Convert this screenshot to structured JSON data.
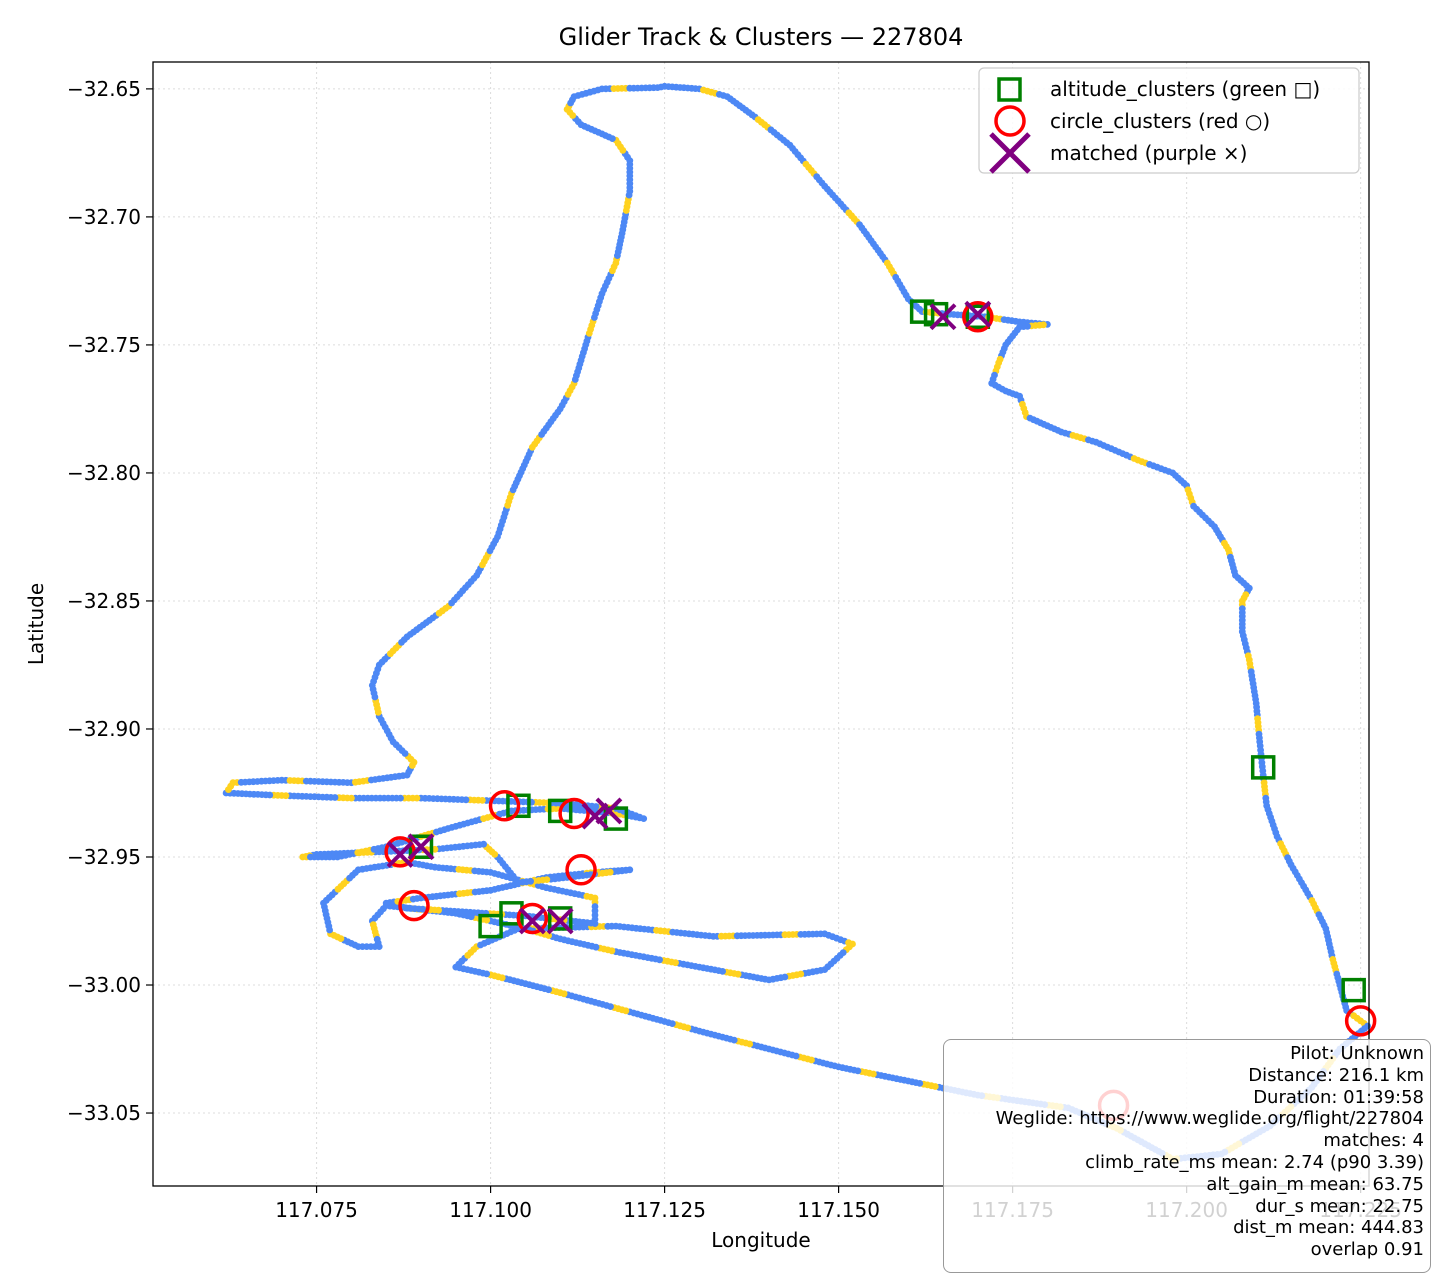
{
  "chart_data": {
    "type": "scatter",
    "title": "Glider Track & Clusters — 227804",
    "xlabel": "Longitude",
    "ylabel": "Latitude",
    "xlim": [
      117.0515,
      117.2262
    ],
    "ylim": [
      -33.0785,
      -32.6395
    ],
    "x_ticks": [
      "117.075",
      "117.100",
      "117.125",
      "117.150",
      "117.175",
      "117.200",
      "117.225"
    ],
    "x_tick_values": [
      117.075,
      117.1,
      117.125,
      117.15,
      117.175,
      117.2,
      117.225
    ],
    "y_ticks": [
      "−32.65",
      "−32.70",
      "−32.75",
      "−32.80",
      "−32.85",
      "−32.90",
      "−32.95",
      "−33.00",
      "−33.05"
    ],
    "y_tick_values": [
      -32.65,
      -32.7,
      -32.75,
      -32.8,
      -32.85,
      -32.9,
      -32.95,
      -33.0,
      -33.05
    ],
    "grid": true,
    "legend_position": "upper right",
    "track_colors": [
      "#4d88f5",
      "#ffd21f"
    ],
    "track": [
      [
        117.124,
        -32.6495
      ],
      [
        117.125,
        -32.649
      ],
      [
        117.13,
        -32.65
      ],
      [
        117.134,
        -32.653
      ],
      [
        117.138,
        -32.661
      ],
      [
        117.143,
        -32.672
      ],
      [
        117.148,
        -32.688
      ],
      [
        117.153,
        -32.703
      ],
      [
        117.157,
        -32.718
      ],
      [
        117.16,
        -32.732
      ],
      [
        117.162,
        -32.737
      ],
      [
        117.166,
        -32.738
      ],
      [
        117.171,
        -32.739
      ],
      [
        117.176,
        -32.741
      ],
      [
        117.18,
        -32.742
      ],
      [
        117.176,
        -32.743
      ],
      [
        117.174,
        -32.75
      ],
      [
        117.173,
        -32.757
      ],
      [
        117.172,
        -32.765
      ],
      [
        117.174,
        -32.768
      ],
      [
        117.176,
        -32.77
      ],
      [
        117.177,
        -32.778
      ],
      [
        117.182,
        -32.784
      ],
      [
        117.187,
        -32.788
      ],
      [
        117.193,
        -32.795
      ],
      [
        117.198,
        -32.8
      ],
      [
        117.2,
        -32.805
      ],
      [
        117.201,
        -32.813
      ],
      [
        117.204,
        -32.821
      ],
      [
        117.206,
        -32.83
      ],
      [
        117.207,
        -32.84
      ],
      [
        117.209,
        -32.845
      ],
      [
        117.208,
        -32.85
      ],
      [
        117.208,
        -32.862
      ],
      [
        117.209,
        -32.873
      ],
      [
        117.21,
        -32.89
      ],
      [
        117.2105,
        -32.905
      ],
      [
        117.211,
        -32.918
      ],
      [
        117.2115,
        -32.93
      ],
      [
        117.213,
        -32.942
      ],
      [
        117.215,
        -32.953
      ],
      [
        117.218,
        -32.967
      ],
      [
        117.22,
        -32.978
      ],
      [
        117.221,
        -32.99
      ],
      [
        117.222,
        -33.0
      ],
      [
        117.223,
        -33.01
      ],
      [
        117.226,
        -33.016
      ],
      [
        117.222,
        -33.025
      ],
      [
        117.218,
        -33.04
      ],
      [
        117.212,
        -33.055
      ],
      [
        117.205,
        -33.066
      ],
      [
        117.198,
        -33.068
      ],
      [
        117.19,
        -33.056
      ],
      [
        117.183,
        -33.048
      ],
      [
        117.17,
        -33.043
      ],
      [
        117.15,
        -33.032
      ],
      [
        117.13,
        -33.018
      ],
      [
        117.11,
        -33.003
      ],
      [
        117.1,
        -32.996
      ],
      [
        117.095,
        -32.993
      ],
      [
        117.098,
        -32.985
      ],
      [
        117.104,
        -32.978
      ],
      [
        117.118,
        -32.977
      ],
      [
        117.132,
        -32.981
      ],
      [
        117.148,
        -32.98
      ],
      [
        117.152,
        -32.984
      ],
      [
        117.148,
        -32.994
      ],
      [
        117.14,
        -32.998
      ],
      [
        117.13,
        -32.993
      ],
      [
        117.118,
        -32.987
      ],
      [
        117.11,
        -32.982
      ],
      [
        117.105,
        -32.978
      ],
      [
        117.095,
        -32.972
      ],
      [
        117.085,
        -32.969
      ],
      [
        117.083,
        -32.975
      ],
      [
        117.084,
        -32.985
      ],
      [
        117.081,
        -32.985
      ],
      [
        117.077,
        -32.98
      ],
      [
        117.076,
        -32.968
      ],
      [
        117.081,
        -32.955
      ],
      [
        117.088,
        -32.952
      ],
      [
        117.092,
        -32.954
      ],
      [
        117.1,
        -32.956
      ],
      [
        117.108,
        -32.962
      ],
      [
        117.115,
        -32.966
      ],
      [
        117.115,
        -32.976
      ],
      [
        117.105,
        -32.973
      ],
      [
        117.088,
        -32.97
      ],
      [
        117.085,
        -32.968
      ],
      [
        117.09,
        -32.966
      ],
      [
        117.1,
        -32.963
      ],
      [
        117.108,
        -32.958
      ],
      [
        117.115,
        -32.956
      ],
      [
        117.12,
        -32.955
      ],
      [
        117.111,
        -32.958
      ],
      [
        117.104,
        -32.96
      ],
      [
        117.101,
        -32.95
      ],
      [
        117.099,
        -32.945
      ],
      [
        117.092,
        -32.947
      ],
      [
        117.084,
        -32.948
      ],
      [
        117.075,
        -32.949
      ],
      [
        117.073,
        -32.95
      ],
      [
        117.078,
        -32.95
      ],
      [
        117.085,
        -32.946
      ],
      [
        117.095,
        -32.938
      ],
      [
        117.103,
        -32.932
      ],
      [
        117.11,
        -32.931
      ],
      [
        117.118,
        -32.933
      ],
      [
        117.122,
        -32.935
      ],
      [
        117.118,
        -32.931
      ],
      [
        117.11,
        -32.929
      ],
      [
        117.1,
        -32.928
      ],
      [
        117.09,
        -32.927
      ],
      [
        117.08,
        -32.927
      ],
      [
        117.07,
        -32.926
      ],
      [
        117.062,
        -32.925
      ],
      [
        117.063,
        -32.921
      ],
      [
        117.07,
        -32.92
      ],
      [
        117.08,
        -32.921
      ],
      [
        117.088,
        -32.918
      ],
      [
        117.089,
        -32.913
      ],
      [
        117.086,
        -32.905
      ],
      [
        117.084,
        -32.895
      ],
      [
        117.083,
        -32.883
      ],
      [
        117.084,
        -32.875
      ],
      [
        117.088,
        -32.864
      ],
      [
        117.094,
        -32.852
      ],
      [
        117.098,
        -32.84
      ],
      [
        117.101,
        -32.825
      ],
      [
        117.103,
        -32.808
      ],
      [
        117.106,
        -32.79
      ],
      [
        117.11,
        -32.775
      ],
      [
        117.112,
        -32.765
      ],
      [
        117.114,
        -32.747
      ],
      [
        117.116,
        -32.73
      ],
      [
        117.118,
        -32.718
      ],
      [
        117.119,
        -32.705
      ],
      [
        117.12,
        -32.69
      ],
      [
        117.12,
        -32.678
      ],
      [
        117.118,
        -32.67
      ],
      [
        117.113,
        -32.664
      ],
      [
        117.111,
        -32.658
      ],
      [
        117.112,
        -32.653
      ],
      [
        117.116,
        -32.65
      ],
      [
        117.124,
        -32.6495
      ]
    ],
    "series": [
      {
        "name": "altitude_clusters (green □)",
        "color": "#008000",
        "marker": "square",
        "points": [
          [
            117.162,
            -32.737
          ],
          [
            117.164,
            -32.738
          ],
          [
            117.17,
            -32.739
          ],
          [
            117.211,
            -32.915
          ],
          [
            117.224,
            -33.002
          ],
          [
            117.1,
            -32.977
          ],
          [
            117.103,
            -32.972
          ],
          [
            117.11,
            -32.974
          ],
          [
            117.104,
            -32.93
          ],
          [
            117.11,
            -32.932
          ],
          [
            117.118,
            -32.935
          ],
          [
            117.09,
            -32.946
          ]
        ]
      },
      {
        "name": "circle_clusters (red ○)",
        "color": "#ff0000",
        "marker": "circle",
        "points": [
          [
            117.17,
            -32.739
          ],
          [
            117.225,
            -33.014
          ],
          [
            117.1895,
            -33.047
          ],
          [
            117.087,
            -32.948
          ],
          [
            117.089,
            -32.969
          ],
          [
            117.102,
            -32.93
          ],
          [
            117.112,
            -32.933
          ],
          [
            117.113,
            -32.955
          ],
          [
            117.106,
            -32.974
          ]
        ]
      },
      {
        "name": "matched (purple ×)",
        "color": "#800080",
        "marker": "x",
        "points": [
          [
            117.165,
            -32.739
          ],
          [
            117.17,
            -32.738
          ],
          [
            117.087,
            -32.949
          ],
          [
            117.09,
            -32.946
          ],
          [
            117.106,
            -32.975
          ],
          [
            117.11,
            -32.975
          ],
          [
            117.115,
            -32.934
          ],
          [
            117.117,
            -32.932
          ]
        ]
      }
    ]
  },
  "info_lines": [
    "Pilot: Unknown",
    "Distance: 216.1 km",
    "Duration: 01:39:58",
    "Weglide: https://www.weglide.org/flight/227804",
    "matches: 4",
    "climb_rate_ms mean: 2.74 (p90 3.39)",
    "alt_gain_m mean: 63.75",
    "dur_s mean: 22.75",
    "dist_m mean: 444.83",
    "overlap 0.91"
  ]
}
